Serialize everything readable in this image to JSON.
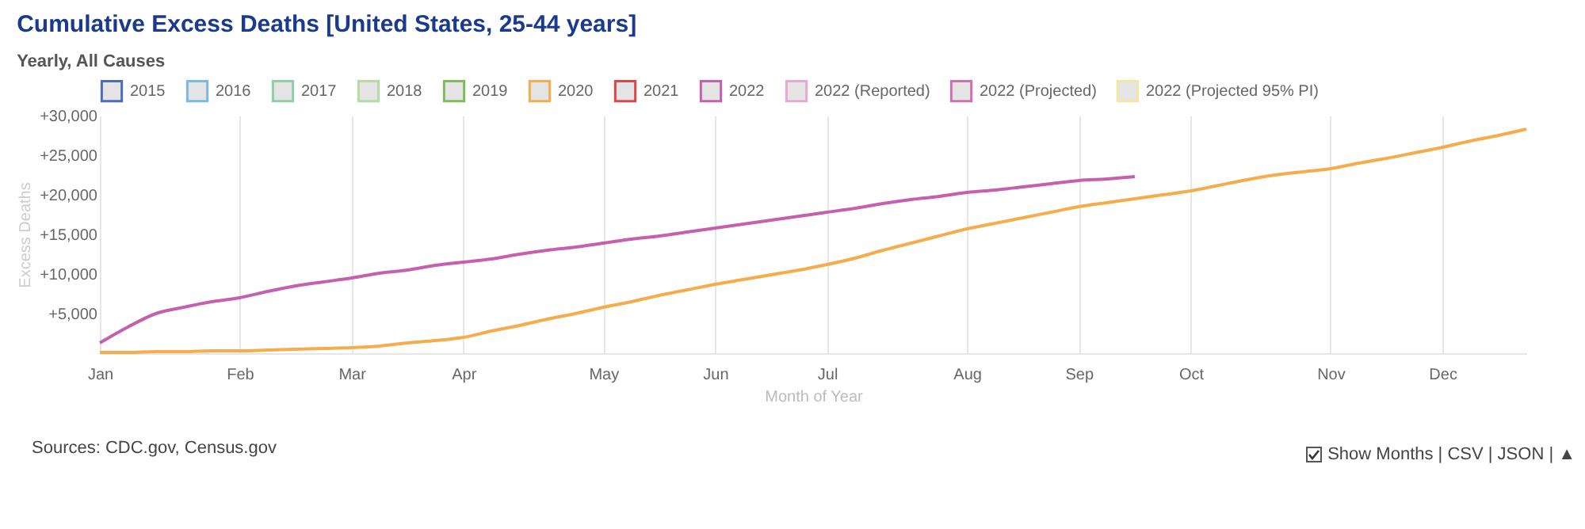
{
  "chart_data": {
    "type": "line",
    "title": "Cumulative Excess Deaths [United States, 25-44 years]",
    "subtitle": "Yearly, All Causes",
    "xlabel": "Month of Year",
    "ylabel": "Excess Deaths",
    "annotations": [
      "Sources: CDC.gov, Census.gov",
      "Show Months | CSV | JSON | ▲"
    ],
    "categories": [
      "Jan",
      null,
      null,
      null,
      null,
      "Feb",
      null,
      null,
      null,
      "Mar",
      null,
      null,
      null,
      "Apr",
      null,
      null,
      null,
      null,
      "May",
      null,
      null,
      null,
      "Jun",
      null,
      null,
      null,
      "Jul",
      null,
      null,
      null,
      null,
      "Aug",
      null,
      null,
      null,
      "Sep",
      null,
      null,
      null,
      "Oct",
      null,
      null,
      null,
      null,
      "Nov",
      null,
      null,
      null,
      "Dec",
      null,
      null,
      null
    ],
    "ylim": [
      0,
      30000
    ],
    "yticks": [
      {
        "value": 0,
        "label": null
      },
      {
        "value": 5000,
        "label": "+5,000"
      },
      {
        "value": 10000,
        "label": "+10,000"
      },
      {
        "value": 15000,
        "label": "+15,000"
      },
      {
        "value": 20000,
        "label": "+20,000"
      },
      {
        "value": 25000,
        "label": "+25,000"
      },
      {
        "value": 30000,
        "label": "+30,000"
      }
    ],
    "grid": "x",
    "legend": "top",
    "marker": "none",
    "series": [
      {
        "name": "2015",
        "color": "#4a6cbf",
        "values": [
          null,
          null,
          null,
          null,
          null,
          null,
          null,
          null,
          null,
          null,
          null,
          null,
          null,
          null,
          null,
          null,
          null,
          null,
          null,
          null,
          null,
          null,
          null,
          null,
          null,
          null,
          null,
          null,
          null,
          null,
          null,
          null,
          null,
          null,
          null,
          null,
          null,
          null,
          null,
          null,
          null,
          null,
          null,
          null,
          null,
          null,
          null,
          null,
          null,
          null,
          null,
          null
        ]
      },
      {
        "name": "2016",
        "color": "#7ab8e6",
        "values": [
          null,
          null,
          null,
          null,
          null,
          null,
          null,
          null,
          null,
          null,
          null,
          null,
          null,
          null,
          null,
          null,
          null,
          null,
          null,
          null,
          null,
          null,
          null,
          null,
          null,
          null,
          null,
          null,
          null,
          null,
          null,
          null,
          null,
          null,
          null,
          null,
          null,
          null,
          null,
          null,
          null,
          null,
          null,
          null,
          null,
          null,
          null,
          null,
          null,
          null,
          null,
          null
        ]
      },
      {
        "name": "2017",
        "color": "#8fcfa8",
        "values": [
          null,
          null,
          null,
          null,
          null,
          null,
          null,
          null,
          null,
          null,
          null,
          null,
          null,
          null,
          null,
          null,
          null,
          null,
          null,
          null,
          null,
          null,
          null,
          null,
          null,
          null,
          null,
          null,
          null,
          null,
          null,
          null,
          null,
          null,
          null,
          null,
          null,
          null,
          null,
          null,
          null,
          null,
          null,
          null,
          null,
          null,
          null,
          null,
          null,
          null,
          null,
          null
        ]
      },
      {
        "name": "2018",
        "color": "#b5dba0",
        "values": [
          null,
          null,
          null,
          null,
          null,
          null,
          null,
          null,
          null,
          null,
          null,
          null,
          null,
          null,
          null,
          null,
          null,
          null,
          null,
          null,
          null,
          null,
          null,
          null,
          null,
          null,
          null,
          null,
          null,
          null,
          null,
          null,
          null,
          null,
          null,
          null,
          null,
          null,
          null,
          null,
          null,
          null,
          null,
          null,
          null,
          null,
          null,
          null,
          null,
          null,
          null,
          null
        ]
      },
      {
        "name": "2019",
        "color": "#7cbd5a",
        "values": [
          null,
          null,
          null,
          null,
          null,
          null,
          null,
          null,
          null,
          null,
          null,
          null,
          null,
          null,
          null,
          null,
          null,
          null,
          null,
          null,
          null,
          null,
          null,
          null,
          null,
          null,
          null,
          null,
          null,
          null,
          null,
          null,
          null,
          null,
          null,
          null,
          null,
          null,
          null,
          null,
          null,
          null,
          null,
          null,
          null,
          null,
          null,
          null,
          null,
          null,
          null,
          null
        ]
      },
      {
        "name": "2020",
        "color": "#f5ad4c",
        "values": [
          100,
          100,
          200,
          200,
          300,
          300,
          400,
          500,
          600,
          700,
          900,
          1300,
          1600,
          2000,
          2800,
          3500,
          4300,
          5000,
          5800,
          6500,
          7300,
          8000,
          8700,
          9300,
          9900,
          10500,
          11200,
          12000,
          13000,
          13900,
          14800,
          15700,
          16400,
          17100,
          17800,
          18500,
          19000,
          19500,
          20000,
          20500,
          21200,
          21900,
          22500,
          22900,
          23300,
          24000,
          24600,
          25300,
          26000,
          26800,
          27500,
          28300
        ]
      },
      {
        "name": "2021",
        "color": "#e0454a",
        "values": [
          null,
          null,
          null,
          null,
          null,
          null,
          null,
          null,
          null,
          null,
          null,
          null,
          null,
          null,
          null,
          null,
          null,
          null,
          null,
          null,
          null,
          null,
          null,
          null,
          null,
          null,
          null,
          null,
          null,
          null,
          null,
          null,
          null,
          null,
          null,
          null,
          null,
          null,
          null,
          null,
          null,
          null,
          null,
          null,
          null,
          null,
          null,
          null,
          null,
          null,
          null,
          null
        ]
      },
      {
        "name": "2022",
        "color": "#c55fae",
        "values": [
          1300,
          3300,
          5000,
          5800,
          6500,
          7000,
          7800,
          8500,
          9000,
          9500,
          10100,
          10500,
          11100,
          11500,
          11900,
          12500,
          13000,
          13400,
          13900,
          14400,
          14800,
          15300,
          15800,
          16300,
          16800,
          17300,
          17800,
          18300,
          18900,
          19400,
          19800,
          20300,
          20600,
          21000,
          21400,
          21800,
          22000,
          22300,
          null,
          null,
          null,
          null,
          null,
          null,
          null,
          null,
          null,
          null,
          null,
          null,
          null,
          null
        ]
      },
      {
        "name": "2022 (Reported)",
        "color": "#e8a9cf",
        "values": [
          null,
          null,
          null,
          null,
          null,
          null,
          null,
          null,
          null,
          null,
          null,
          null,
          null,
          null,
          null,
          null,
          null,
          null,
          null,
          null,
          null,
          null,
          null,
          null,
          null,
          null,
          null,
          null,
          null,
          null,
          null,
          null,
          null,
          null,
          null,
          null,
          null,
          null,
          null,
          null,
          null,
          null,
          null,
          null,
          null,
          null,
          null,
          null,
          null,
          null,
          null,
          null
        ]
      },
      {
        "name": "2022 (Projected)",
        "color": "#d070b0",
        "values": [
          null,
          null,
          null,
          null,
          null,
          null,
          null,
          null,
          null,
          null,
          null,
          null,
          null,
          null,
          null,
          null,
          null,
          null,
          null,
          null,
          null,
          null,
          null,
          null,
          null,
          null,
          null,
          null,
          null,
          null,
          null,
          null,
          null,
          null,
          null,
          null,
          null,
          null,
          null,
          null,
          null,
          null,
          null,
          null,
          null,
          null,
          null,
          null,
          null,
          null,
          null,
          null
        ]
      },
      {
        "name": "2022 (Projected 95% PI)",
        "color": "#f2e6a0",
        "values": [
          null,
          null,
          null,
          null,
          null,
          null,
          null,
          null,
          null,
          null,
          null,
          null,
          null,
          null,
          null,
          null,
          null,
          null,
          null,
          null,
          null,
          null,
          null,
          null,
          null,
          null,
          null,
          null,
          null,
          null,
          null,
          null,
          null,
          null,
          null,
          null,
          null,
          null,
          null,
          null,
          null,
          null,
          null,
          null,
          null,
          null,
          null,
          null,
          null,
          null,
          null,
          null
        ]
      }
    ]
  }
}
